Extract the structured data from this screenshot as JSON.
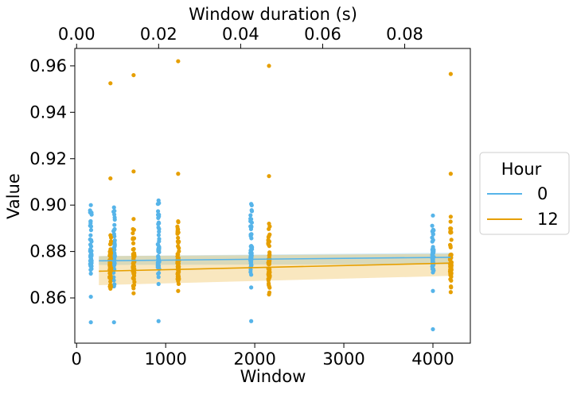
{
  "chart_data": {
    "type": "scatter",
    "x_top_label": "Window duration (s)",
    "xlabel": "Window",
    "ylabel": "Value",
    "xlim": [
      -20,
      4420
    ],
    "ylim": [
      0.8405,
      0.9675
    ],
    "x_top_lim": [
      -0.000435,
      0.096
    ],
    "x_ticks": [
      0,
      1000,
      2000,
      3000,
      4000
    ],
    "y_ticks": [
      0.86,
      0.88,
      0.9,
      0.92,
      0.94,
      0.96
    ],
    "x_top_ticks": [
      0.0,
      0.02,
      0.04,
      0.06,
      0.08
    ],
    "x_tick_labels": [
      "0",
      "1000",
      "2000",
      "3000",
      "4000"
    ],
    "y_tick_labels": [
      "0.86",
      "0.88",
      "0.90",
      "0.92",
      "0.94",
      "0.96"
    ],
    "x_top_tick_labels": [
      "0.00",
      "0.02",
      "0.04",
      "0.06",
      "0.08"
    ],
    "legend": {
      "title": "Hour",
      "placement": "right-outside",
      "entries": [
        {
          "label": "0",
          "color": "#56B4E9"
        },
        {
          "label": "12",
          "color": "#E69F00"
        }
      ]
    },
    "series": [
      {
        "name": "0",
        "color": "#56B4E9",
        "dot_color": "#56B4E9",
        "windows": [
          {
            "x": 160,
            "min": 0.8705,
            "max": 0.9,
            "q1": 0.8725,
            "q3": 0.881,
            "outliers": [
              0.8605,
              0.8495
            ]
          },
          {
            "x": 420,
            "min": 0.865,
            "max": 0.899,
            "q1": 0.872,
            "q3": 0.885,
            "outliers": [
              0.8495
            ]
          },
          {
            "x": 920,
            "min": 0.869,
            "max": 0.902,
            "q1": 0.873,
            "q3": 0.883,
            "outliers": [
              0.866,
              0.85
            ]
          },
          {
            "x": 1960,
            "min": 0.87,
            "max": 0.9005,
            "q1": 0.8735,
            "q3": 0.8825,
            "outliers": [
              0.8645,
              0.85
            ]
          },
          {
            "x": 4000,
            "min": 0.871,
            "max": 0.8955,
            "q1": 0.8735,
            "q3": 0.881,
            "outliers": [
              0.863,
              0.8465
            ]
          }
        ],
        "fit": {
          "x": [
            250,
            4200
          ],
          "y": [
            0.876,
            0.8775
          ]
        },
        "band": {
          "upper": [
            0.878,
            0.8795
          ],
          "lower": [
            0.8742,
            0.8745
          ]
        }
      },
      {
        "name": "12",
        "color": "#E69F00",
        "dot_color": "#E69F00",
        "windows": [
          {
            "x": 380,
            "min": 0.864,
            "max": 0.887,
            "q1": 0.868,
            "q3": 0.879,
            "outliers": [
              0.9525,
              0.9115
            ]
          },
          {
            "x": 640,
            "min": 0.862,
            "max": 0.894,
            "q1": 0.868,
            "q3": 0.879,
            "outliers": [
              0.956,
              0.9145
            ]
          },
          {
            "x": 1140,
            "min": 0.863,
            "max": 0.893,
            "q1": 0.868,
            "q3": 0.879,
            "outliers": [
              0.962,
              0.9135
            ]
          },
          {
            "x": 2160,
            "min": 0.8615,
            "max": 0.892,
            "q1": 0.868,
            "q3": 0.879,
            "outliers": [
              0.96,
              0.9125
            ]
          },
          {
            "x": 4200,
            "min": 0.8625,
            "max": 0.895,
            "q1": 0.869,
            "q3": 0.879,
            "outliers": [
              0.9565,
              0.9135
            ]
          }
        ],
        "fit": {
          "x": [
            250,
            4200
          ],
          "y": [
            0.8715,
            0.875
          ]
        },
        "band": {
          "upper": [
            0.878,
            0.879
          ],
          "lower": [
            0.8655,
            0.8695
          ]
        }
      }
    ]
  }
}
